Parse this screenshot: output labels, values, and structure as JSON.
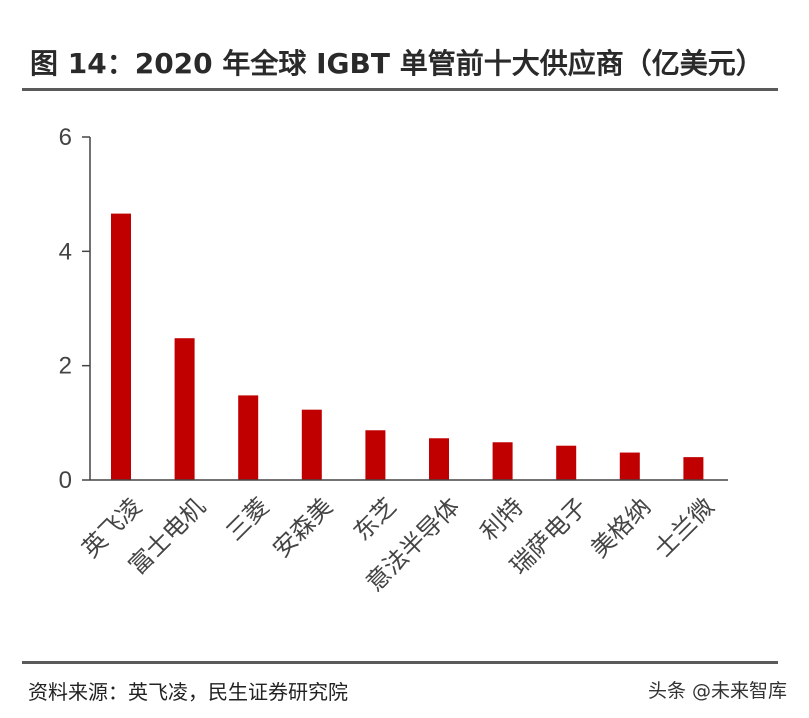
{
  "title": "图 14：2020 年全球 IGBT 单管前十大供应商（亿美元）",
  "source": "资料来源：英飞凌，民生证券研究院",
  "watermark": "头条 @未来智库",
  "colors": {
    "bar": "#c00000",
    "axis": "#444444",
    "rule": "#5a5a5a"
  },
  "chart_data": {
    "type": "bar",
    "title": "图 14：2020 年全球 IGBT 单管前十大供应商（亿美元）",
    "categories": [
      "英飞凌",
      "富士电机",
      "三菱",
      "安森美",
      "东芝",
      "意法半导体",
      "利特",
      "瑞萨电子",
      "美格纳",
      "士兰微"
    ],
    "values": [
      4.66,
      2.48,
      1.48,
      1.23,
      0.87,
      0.73,
      0.66,
      0.6,
      0.48,
      0.4
    ],
    "yticks": [
      0,
      2,
      4,
      6
    ],
    "ylim": [
      0,
      6
    ],
    "grid": false,
    "legend": "none"
  }
}
